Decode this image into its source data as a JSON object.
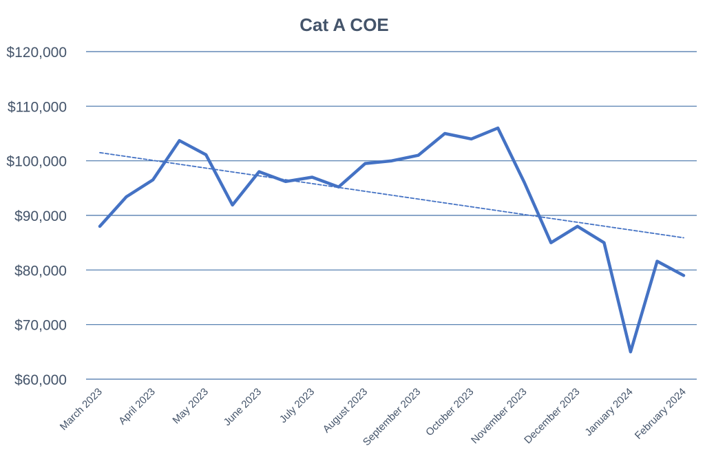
{
  "chart_data": {
    "type": "line",
    "title": "Cat A COE",
    "xlabel": "",
    "ylabel": "",
    "ylim": [
      60000,
      120000
    ],
    "ytick_values": [
      60000,
      70000,
      80000,
      90000,
      100000,
      110000,
      120000
    ],
    "ytick_labels": [
      "$60,000",
      "$70,000",
      "$80,000",
      "$90,000",
      "$100,000",
      "$110,000",
      "$120,000"
    ],
    "xtick_labels": [
      "March 2023",
      "April 2023",
      "May 2023",
      "June 2023",
      "July 2023",
      "August 2023",
      "September 2023",
      "October 2023",
      "November 2023",
      "December 2023",
      "January 2024",
      "February 2024"
    ],
    "grid": true,
    "legend": "none",
    "series": [
      {
        "style": "solid",
        "color": "#4472C4",
        "values": [
          88000,
          93400,
          96500,
          103700,
          101100,
          91900,
          98000,
          96200,
          97000,
          95200,
          99500,
          100000,
          101000,
          105000,
          104000,
          106000,
          96000,
          85000,
          88000,
          85000,
          65000,
          81600,
          79000
        ]
      },
      {
        "style": "dashed",
        "trendline": "linear",
        "color": "#4472C4",
        "values": [
          101500,
          85900
        ]
      }
    ]
  }
}
